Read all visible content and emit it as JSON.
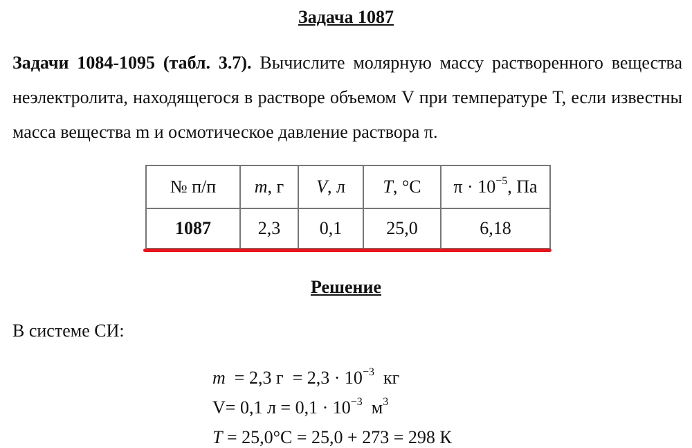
{
  "title": "Задача 1087",
  "problem": {
    "bold_prefix": "Задачи 1084-1095 (табл. 3.7).",
    "text": " Вычислите молярную массу растворенного вещества неэлектролита, находящегося в растворе объемом V при температуре Т, если известны масса вещества m и осмотическое давление раствора π."
  },
  "table": {
    "headers": [
      {
        "sym": "",
        "text": "№ п/п"
      },
      {
        "sym": "m",
        "text": ", г"
      },
      {
        "sym": "V",
        "text": ", л"
      },
      {
        "sym": "T",
        "text": ", °C"
      },
      {
        "sym": "",
        "text": "π · 10",
        "sup": "−5",
        "tail": ", Па"
      }
    ],
    "row": [
      "1087",
      "2,3",
      "0,1",
      "25,0",
      "6,18"
    ],
    "highlight_color": "#e8141c"
  },
  "solution": {
    "heading": "Решение",
    "si_label": "В системе СИ:",
    "formulas": [
      {
        "sym": "m",
        "a": "  = 2,3 г  = 2,3 · 10",
        "sup": "−3",
        "b": "  кг"
      },
      {
        "sym": "",
        "a": "V= 0,1 л = 0,1 · 10",
        "sup": "−3",
        "b": "  м",
        "sup2": "3"
      },
      {
        "sym": "T",
        "a": " = 25,0°C = 25,0 + 273 = 298 К"
      }
    ]
  }
}
